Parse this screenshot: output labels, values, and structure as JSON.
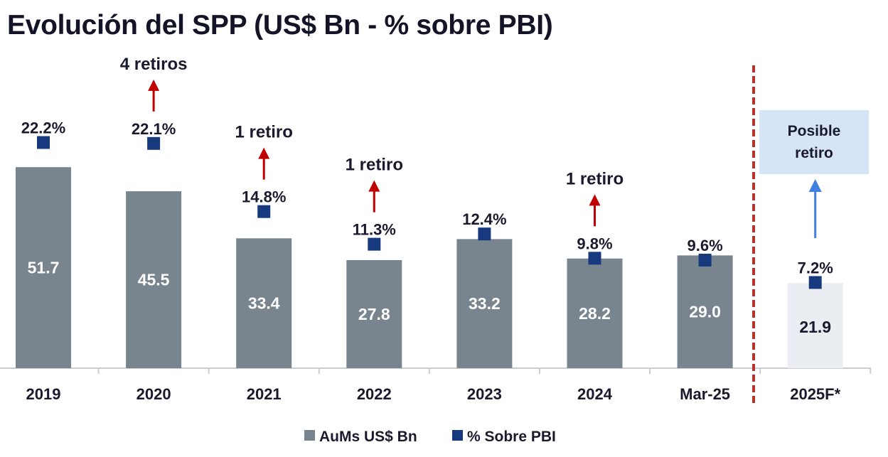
{
  "title": "Evolución del SPP (US$ Bn - % sobre PBI)",
  "chart_data": {
    "type": "bar",
    "title": "Evolución del SPP (US$ Bn - % sobre PBI)",
    "categories": [
      "2019",
      "2020",
      "2021",
      "2022",
      "2023",
      "2024",
      "Mar-25",
      "2025F*"
    ],
    "series": [
      {
        "name": "AuMs US$ Bn",
        "type": "bar",
        "values": [
          51.7,
          45.5,
          33.4,
          27.8,
          33.2,
          28.2,
          29.0,
          21.9
        ],
        "value_labels": [
          "51.7",
          "45.5",
          "33.4",
          "27.8",
          "33.2",
          "28.2",
          "29.0",
          "21.9"
        ],
        "color": "#78858f",
        "forecast_color": "#eaedf1"
      },
      {
        "name": "% Sobre PBI",
        "type": "marker",
        "values": [
          22.2,
          22.1,
          14.8,
          11.3,
          12.4,
          9.8,
          9.6,
          7.2
        ],
        "value_labels": [
          "22.2%",
          "22.1%",
          "14.8%",
          "11.3%",
          "12.4%",
          "9.8%",
          "9.6%",
          "7.2%"
        ],
        "color": "#173a7e"
      }
    ],
    "annotations": [
      {
        "category": "2020",
        "text": "4 retiros",
        "color": "#c00000"
      },
      {
        "category": "2021",
        "text": "1 retiro",
        "color": "#c00000"
      },
      {
        "category": "2022",
        "text": "1 retiro",
        "color": "#c00000"
      },
      {
        "category": "2024",
        "text": "1 retiro",
        "color": "#c00000"
      },
      {
        "category": "2025F*",
        "text": "Posible retiro",
        "color": "#3f7fe0",
        "box_color": "#d6e4f8"
      }
    ],
    "forecast_separator_color": "#b7342b",
    "legend": {
      "position": "bottom",
      "items": [
        "AuMs US$ Bn",
        "% Sobre PBI"
      ]
    },
    "grid": false
  }
}
